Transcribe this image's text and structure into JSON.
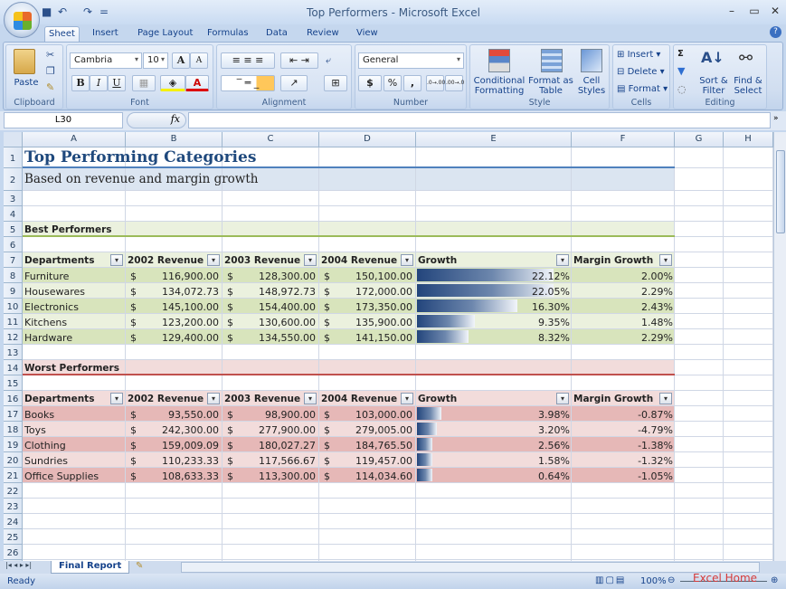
{
  "window": {
    "title": "Top Performers - Microsoft Excel",
    "minimize": "–",
    "restore": "▭",
    "close": "✕",
    "help": "?"
  },
  "qat": {
    "save": "💾",
    "undo": "↶",
    "redo": "↷",
    "customize": "="
  },
  "tabs": [
    "Sheet",
    "Insert",
    "Page Layout",
    "Formulas",
    "Data",
    "Review",
    "View"
  ],
  "active_tab": "Sheet",
  "ribbon": {
    "clipboard": {
      "label": "Clipboard",
      "paste": "Paste"
    },
    "font": {
      "label": "Font",
      "name": "Cambria",
      "size": "10",
      "grow": "A",
      "shrink": "A",
      "bold": "B",
      "italic": "I",
      "underline": "U"
    },
    "alignment": {
      "label": "Alignment"
    },
    "number": {
      "label": "Number",
      "format": "General",
      "currency": "$",
      "percent": "%",
      "comma": ",",
      "inc_decimal": ".0→.00",
      "dec_decimal": ".00→.0"
    },
    "style": {
      "label": "Style",
      "conditional": "Conditional Formatting",
      "format_table": "Format as Table",
      "cell_styles": "Cell Styles"
    },
    "cells": {
      "label": "Cells",
      "insert": "Insert",
      "delete": "Delete",
      "format": "Format"
    },
    "editing": {
      "label": "Editing",
      "sum": "Σ",
      "sort": "Sort & Filter",
      "find": "Find & Select"
    }
  },
  "formula_bar": {
    "name_box": "L30",
    "fx": "fx",
    "value": ""
  },
  "columns": [
    "A",
    "B",
    "C",
    "D",
    "E",
    "F",
    "G",
    "H"
  ],
  "sheet": {
    "title": "Top Performing Categories",
    "subtitle": "Based on revenue and margin growth",
    "best_label": "Best Performers",
    "worst_label": "Worst Performers",
    "headers": [
      "Departments",
      "2002 Revenue",
      "2003 Revenue",
      "2004 Revenue",
      "Growth",
      "Margin Growth"
    ],
    "currency_symbol": "$",
    "best": [
      {
        "dept": "Furniture",
        "r2002": "116,900.00",
        "r2003": "128,300.00",
        "r2004": "150,100.00",
        "growth": "22.12%",
        "growth_value": 22.12,
        "margin": "2.00%"
      },
      {
        "dept": "Housewares",
        "r2002": "134,072.73",
        "r2003": "148,972.73",
        "r2004": "172,000.00",
        "growth": "22.05%",
        "growth_value": 22.05,
        "margin": "2.29%"
      },
      {
        "dept": "Electronics",
        "r2002": "145,100.00",
        "r2003": "154,400.00",
        "r2004": "173,350.00",
        "growth": "16.30%",
        "growth_value": 16.3,
        "margin": "2.43%"
      },
      {
        "dept": "Kitchens",
        "r2002": "123,200.00",
        "r2003": "130,600.00",
        "r2004": "135,900.00",
        "growth": "9.35%",
        "growth_value": 9.35,
        "margin": "1.48%"
      },
      {
        "dept": "Hardware",
        "r2002": "129,400.00",
        "r2003": "134,550.00",
        "r2004": "141,150.00",
        "growth": "8.32%",
        "growth_value": 8.32,
        "margin": "2.29%"
      }
    ],
    "worst": [
      {
        "dept": "Books",
        "r2002": "93,550.00",
        "r2003": "98,900.00",
        "r2004": "103,000.00",
        "growth": "3.98%",
        "growth_value": 3.98,
        "margin": "-0.87%"
      },
      {
        "dept": "Toys",
        "r2002": "242,300.00",
        "r2003": "277,900.00",
        "r2004": "279,005.00",
        "growth": "3.20%",
        "growth_value": 3.2,
        "margin": "-4.79%"
      },
      {
        "dept": "Clothing",
        "r2002": "159,009.09",
        "r2003": "180,027.27",
        "r2004": "184,765.50",
        "growth": "2.56%",
        "growth_value": 2.56,
        "margin": "-1.38%"
      },
      {
        "dept": "Sundries",
        "r2002": "110,233.33",
        "r2003": "117,566.67",
        "r2004": "119,457.00",
        "growth": "1.58%",
        "growth_value": 1.58,
        "margin": "-1.32%"
      },
      {
        "dept": "Office Supplies",
        "r2002": "108,633.33",
        "r2003": "113,300.00",
        "r2004": "114,034.60",
        "growth": "0.64%",
        "growth_value": 0.64,
        "margin": "-1.05%"
      }
    ]
  },
  "sheet_tabs": {
    "active": "Final Report"
  },
  "status": {
    "text": "Ready",
    "zoom": "100%",
    "watermark": "Excel Home"
  },
  "colors": {
    "title": "#1f497d",
    "best_dark": "#d8e4bc",
    "best_light": "#ebf1de",
    "worst_dark": "#e6b8b7",
    "worst_light": "#f2dcdb",
    "bar": "#23457c"
  }
}
